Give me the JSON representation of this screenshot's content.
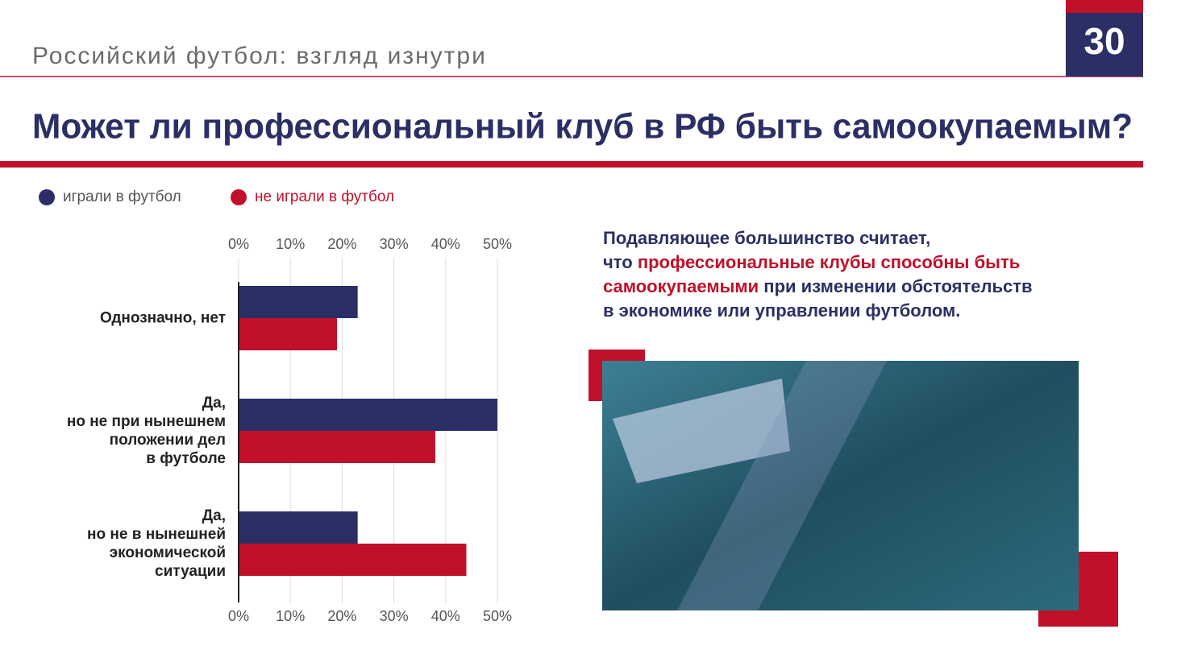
{
  "header": {
    "title": "Российский футбол: взгляд изнутри",
    "page_number": "30"
  },
  "slide_title": "Может ли профессиональный клуб в РФ быть самоокупаемым?",
  "chart_data": {
    "type": "bar",
    "orientation": "horizontal",
    "categories": [
      "Однозначно, нет",
      "Да,\nно не при нынешнем\nположении дел\nв футболе",
      "Да,\nно не в нынешней\nэкономической\nситуации"
    ],
    "series": [
      {
        "name": "играли в футбол",
        "color": "#2b2f66",
        "values": [
          23,
          50,
          23
        ]
      },
      {
        "name": "не играли в футбол",
        "color": "#c0102a",
        "values": [
          19,
          38,
          44
        ]
      }
    ],
    "xlim": [
      0,
      50
    ],
    "xticks": [
      {
        "value": 0,
        "label": "0%"
      },
      {
        "value": 10,
        "label": "10%"
      },
      {
        "value": 20,
        "label": "20%"
      },
      {
        "value": 30,
        "label": "30%"
      },
      {
        "value": 40,
        "label": "40%"
      },
      {
        "value": 50,
        "label": "50%"
      }
    ],
    "grid": true,
    "legend": "top-left"
  },
  "paragraph": {
    "parts": [
      {
        "text": "Подавляющее большинство считает,\nчто ",
        "highlight": false
      },
      {
        "text": "профессиональные клубы способны быть\nсамоокупаемыми",
        "highlight": true
      },
      {
        "text": " при изменении обстоятельств\nв экономике или управлении футболом.",
        "highlight": false
      }
    ]
  }
}
